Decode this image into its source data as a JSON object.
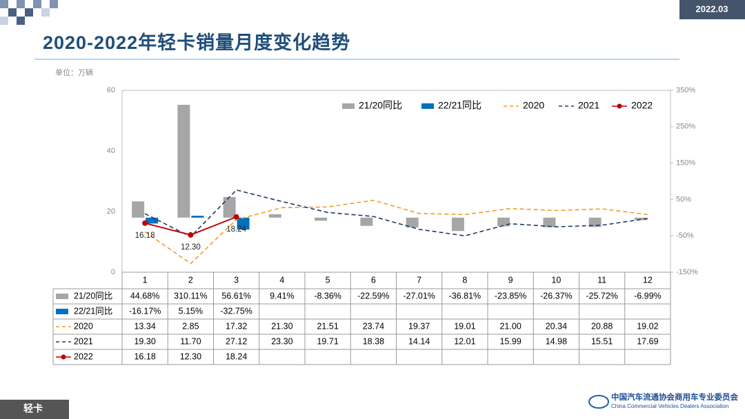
{
  "header": {
    "date": "2022.03",
    "title": "2020-2022年轻卡销量月度变化趋势",
    "unit": "单位：万辆",
    "footer": "轻卡",
    "org_cn": "中国汽车流通协会商用车专业委员会",
    "org_en": "China Commercial Vehicles Dealers Association"
  },
  "chart_data": {
    "type": "combo",
    "categories": [
      "1",
      "2",
      "3",
      "4",
      "5",
      "6",
      "7",
      "8",
      "9",
      "10",
      "11",
      "12"
    ],
    "ylim": [
      0,
      60
    ],
    "yticks": [
      0,
      20,
      40,
      60
    ],
    "y2lim": [
      -150,
      350
    ],
    "y2ticks": [
      {
        "value": -150,
        "label": "-150%"
      },
      {
        "value": -50,
        "label": "-50%"
      },
      {
        "value": 50,
        "label": "50%"
      },
      {
        "value": 150,
        "label": "150%"
      },
      {
        "value": 250,
        "label": "250%"
      },
      {
        "value": 350,
        "label": "350%"
      }
    ],
    "grid": false,
    "series": [
      {
        "name": "21/20同比",
        "type": "bar",
        "axis": "y2",
        "color": "#a6a6a6",
        "values": [
          44.68,
          310.11,
          56.61,
          9.41,
          -8.36,
          -22.59,
          -27.01,
          -36.81,
          -23.85,
          -26.37,
          -25.72,
          -6.99
        ],
        "value_labels": [
          "44.68%",
          "310.11%",
          "56.61%",
          "9.41%",
          "-8.36%",
          "-22.59%",
          "-27.01%",
          "-36.81%",
          "-23.85%",
          "-26.37%",
          "-25.72%",
          "-6.99%"
        ]
      },
      {
        "name": "22/21同比",
        "type": "bar",
        "axis": "y2",
        "color": "#0070c0",
        "values": [
          -16.17,
          5.15,
          -32.75,
          null,
          null,
          null,
          null,
          null,
          null,
          null,
          null,
          null
        ],
        "value_labels": [
          "-16.17%",
          "5.15%",
          "-32.75%",
          null,
          null,
          null,
          null,
          null,
          null,
          null,
          null,
          null
        ]
      },
      {
        "name": "2020",
        "type": "line",
        "dashed": true,
        "color": "#f39c1f",
        "values": [
          13.34,
          2.85,
          17.32,
          21.3,
          21.51,
          23.74,
          19.37,
          19.01,
          21.0,
          20.34,
          20.88,
          19.02
        ],
        "value_labels": [
          "13.34",
          "2.85",
          "17.32",
          "21.30",
          "21.51",
          "23.74",
          "19.37",
          "19.01",
          "21.00",
          "20.34",
          "20.88",
          "19.02"
        ]
      },
      {
        "name": "2021",
        "type": "line",
        "dashed": true,
        "color": "#1f3864",
        "values": [
          19.3,
          11.7,
          27.12,
          23.3,
          19.71,
          18.38,
          14.14,
          12.01,
          15.99,
          14.98,
          15.51,
          17.69
        ],
        "value_labels": [
          "19.30",
          "11.70",
          "27.12",
          "23.30",
          "19.71",
          "18.38",
          "14.14",
          "12.01",
          "15.99",
          "14.98",
          "15.51",
          "17.69"
        ]
      },
      {
        "name": "2022",
        "type": "line",
        "dashed": false,
        "markers": true,
        "data_labels": true,
        "color": "#c00000",
        "values": [
          16.18,
          12.3,
          18.24,
          null,
          null,
          null,
          null,
          null,
          null,
          null,
          null,
          null
        ],
        "value_labels": [
          "16.18",
          "12.30",
          "18.24",
          null,
          null,
          null,
          null,
          null,
          null,
          null,
          null,
          null
        ]
      }
    ]
  }
}
